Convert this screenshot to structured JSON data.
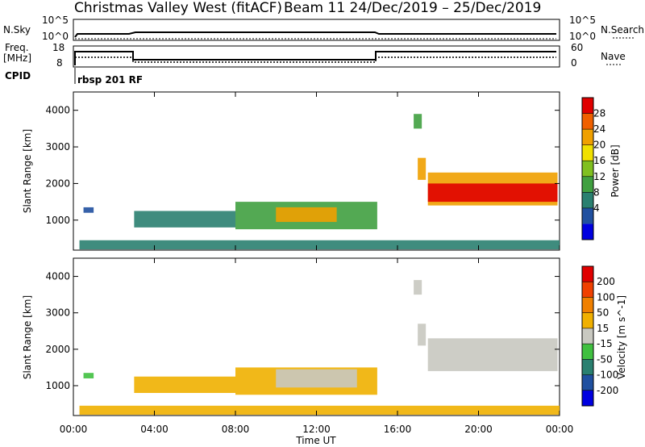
{
  "header": {
    "title_left": "Christmas Valley West (fitACF)",
    "title_right": "Beam 11  24/Dec/2019 – 25/Dec/2019"
  },
  "top_panels": {
    "nsky_label": "N.Sky",
    "nsky_ticks": [
      "10^5",
      "10^0"
    ],
    "nsearch_label": "N.Search",
    "nsearch_ticks": [
      "10^5",
      "10^0"
    ],
    "freq_label_line1": "Freq.",
    "freq_label_line2": "[MHz]",
    "freq_ticks": [
      "18",
      "8"
    ],
    "nave_label": "Nave",
    "nave_ticks": [
      "60",
      "0"
    ],
    "cpid_label": "CPID",
    "cpid_text": "rbsp 201 RF"
  },
  "chart_data": [
    {
      "type": "heatmap",
      "name": "power",
      "ylabel": "Slant Range [km]",
      "ylim": [
        180,
        4500
      ],
      "yticks": [
        "1000",
        "2000",
        "3000",
        "4000"
      ],
      "xlim_hours": [
        0,
        24
      ],
      "colorbar_label": "Power [dB]",
      "colorbar_ticks": [
        "28",
        "24",
        "20",
        "16",
        "12",
        "8",
        "4"
      ],
      "colorbar_colors": [
        "#0000e0",
        "#2050a0",
        "#2a8070",
        "#40a040",
        "#80c020",
        "#f0e000",
        "#f0a000",
        "#f06000",
        "#e00000"
      ],
      "regions": [
        {
          "t0": 0.3,
          "t1": 24,
          "r0": 200,
          "r1": 450,
          "color": "#2a8070"
        },
        {
          "t0": 0.5,
          "t1": 1.0,
          "r0": 1200,
          "r1": 1350,
          "color": "#2050a0"
        },
        {
          "t0": 3.0,
          "t1": 8.0,
          "r0": 800,
          "r1": 1250,
          "color": "#2a8070"
        },
        {
          "t0": 8.0,
          "t1": 15.0,
          "r0": 750,
          "r1": 1500,
          "color": "#40a040"
        },
        {
          "t0": 10.0,
          "t1": 13.0,
          "r0": 950,
          "r1": 1350,
          "color": "#f0a000"
        },
        {
          "t0": 16.8,
          "t1": 17.2,
          "r0": 3500,
          "r1": 3900,
          "color": "#40a040"
        },
        {
          "t0": 17.0,
          "t1": 17.4,
          "r0": 2100,
          "r1": 2700,
          "color": "#f0a000"
        },
        {
          "t0": 17.5,
          "t1": 23.9,
          "r0": 1400,
          "r1": 2300,
          "color": "#f0a000"
        },
        {
          "t0": 17.5,
          "t1": 23.9,
          "r0": 1500,
          "r1": 2000,
          "color": "#e00000"
        }
      ]
    },
    {
      "type": "heatmap",
      "name": "velocity",
      "ylabel": "Slant Range [km]",
      "ylim": [
        180,
        4500
      ],
      "yticks": [
        "1000",
        "2000",
        "3000",
        "4000"
      ],
      "xlim_hours": [
        0,
        24
      ],
      "colorbar_label": "Velocity [m s^-1]",
      "colorbar_ticks": [
        "200",
        "100",
        "50",
        "15",
        "-15",
        "-50",
        "-100",
        "-200"
      ],
      "colorbar_colors": [
        "#0000e0",
        "#2050a0",
        "#2a8070",
        "#40c040",
        "#c8c8c0",
        "#f0b000",
        "#f08000",
        "#f04000",
        "#e00000"
      ],
      "regions": [
        {
          "t0": 0.3,
          "t1": 24,
          "r0": 200,
          "r1": 450,
          "color": "#f0b000"
        },
        {
          "t0": 0.5,
          "t1": 1.0,
          "r0": 1200,
          "r1": 1350,
          "color": "#40c040"
        },
        {
          "t0": 3.0,
          "t1": 8.0,
          "r0": 800,
          "r1": 1250,
          "color": "#f0b000"
        },
        {
          "t0": 8.0,
          "t1": 15.0,
          "r0": 750,
          "r1": 1500,
          "color": "#f0b000"
        },
        {
          "t0": 10.0,
          "t1": 14.0,
          "r0": 950,
          "r1": 1450,
          "color": "#c8c8c0"
        },
        {
          "t0": 16.8,
          "t1": 17.2,
          "r0": 3500,
          "r1": 3900,
          "color": "#c8c8c0"
        },
        {
          "t0": 17.0,
          "t1": 17.4,
          "r0": 2100,
          "r1": 2700,
          "color": "#c8c8c0"
        },
        {
          "t0": 17.5,
          "t1": 23.9,
          "r0": 1400,
          "r1": 2300,
          "color": "#c8c8c0"
        }
      ]
    }
  ],
  "xaxis": {
    "ticks": [
      "00:00",
      "04:00",
      "08:00",
      "12:00",
      "16:00",
      "20:00",
      "00:00"
    ],
    "label": "Time UT"
  },
  "colors": {
    "frame": "#000000",
    "background": "#ffffff"
  }
}
